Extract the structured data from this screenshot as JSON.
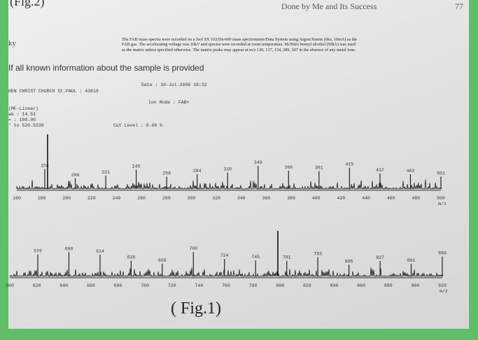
{
  "header": {
    "top_left": "(Fig.2)",
    "running_head": "Done by Me and Its Success",
    "page_number": "77"
  },
  "left_fragment": "ky",
  "paragraph": "The FAB mass spectra were recorded on a Jeol SX 102/Da-600 mass spectrometer/Data System using Argon/Xenon (6kv, 10mA) as the FAB gas. The accelerating voltage was 10kV and spectra were recorded at room temperature. M-Nitro benzyl alcohol (NBA) was used as the matrix unless specified otherwise. The matrix peaks may appear at m/z 136, 137, 154, 289, 307 in the absence of any metal ions.",
  "line2": "If all known information about the sample is provided",
  "meta": [
    "Date : 30-Jul-2008 18:32",
    "HEN CHRIST CHURCH St.PAUL : 43818",
    "Ion Mode : FAB+",
    "(MF-Linear)",
    "ak : 14.51",
    "= : 100.00",
    "' to 520.5338",
    "Cut Level : 0.00 %"
  ],
  "spectrum1": {
    "peak_labels": [
      "154",
      "206",
      "221",
      "245",
      "258",
      "284",
      "318",
      "349",
      "368",
      "391",
      "415",
      "437",
      "463",
      "501"
    ],
    "axis_labels": [
      "160",
      "180",
      "200",
      "220",
      "240",
      "260",
      "280",
      "300",
      "320",
      "340",
      "360",
      "380",
      "400",
      "420",
      "440",
      "460",
      "480",
      "500"
    ],
    "unit": "m/z"
  },
  "spectrum2": {
    "peak_labels": [
      "576",
      "600",
      "614",
      "638",
      "659",
      "700",
      "724",
      "745",
      "781",
      "783",
      "805",
      "827",
      "861",
      "880"
    ],
    "axis_labels": [
      "600",
      "620",
      "640",
      "660",
      "680",
      "700",
      "720",
      "740",
      "760",
      "780",
      "800",
      "820",
      "840",
      "860",
      "880",
      "900",
      "920"
    ],
    "unit": "m/z"
  },
  "caption": "( Fig.1)"
}
